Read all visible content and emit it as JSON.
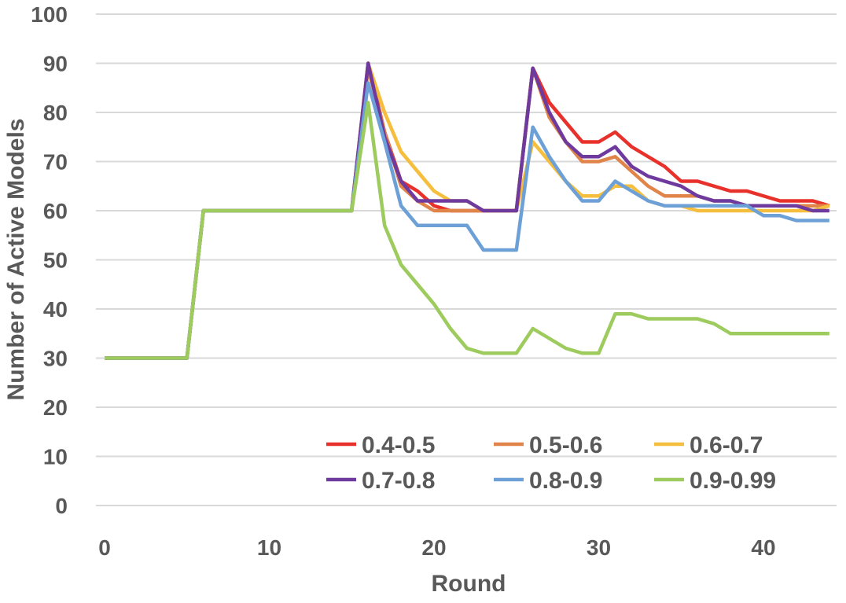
{
  "chart_data": {
    "type": "line",
    "title": "",
    "xlabel": "Round",
    "ylabel": "Number of Active Models",
    "xlim": [
      0,
      44
    ],
    "ylim": [
      0,
      100
    ],
    "xticks": [
      0,
      10,
      20,
      30,
      40
    ],
    "yticks": [
      0,
      10,
      20,
      30,
      40,
      50,
      60,
      70,
      80,
      90,
      100
    ],
    "grid": "horizontal",
    "legend_position": "bottom-right",
    "x": [
      0,
      1,
      2,
      3,
      4,
      5,
      6,
      7,
      8,
      9,
      10,
      11,
      12,
      13,
      14,
      15,
      16,
      17,
      18,
      19,
      20,
      21,
      22,
      23,
      24,
      25,
      26,
      27,
      28,
      29,
      30,
      31,
      32,
      33,
      34,
      35,
      36,
      37,
      38,
      39,
      40,
      41,
      42,
      43,
      44
    ],
    "series": [
      {
        "name": "0.4-0.5",
        "color": "#E8312A",
        "values": [
          30,
          30,
          30,
          30,
          30,
          30,
          60,
          60,
          60,
          60,
          60,
          60,
          60,
          60,
          60,
          60,
          90,
          76,
          66,
          64,
          61,
          60,
          60,
          60,
          60,
          60,
          89,
          82,
          78,
          74,
          74,
          76,
          73,
          71,
          69,
          66,
          66,
          65,
          64,
          64,
          63,
          62,
          62,
          62,
          61
        ]
      },
      {
        "name": "0.5-0.6",
        "color": "#E0844A",
        "values": [
          30,
          30,
          30,
          30,
          30,
          30,
          60,
          60,
          60,
          60,
          60,
          60,
          60,
          60,
          60,
          60,
          89,
          76,
          65,
          62,
          60,
          60,
          60,
          60,
          60,
          60,
          89,
          79,
          74,
          70,
          70,
          71,
          68,
          65,
          63,
          63,
          63,
          62,
          62,
          61,
          61,
          61,
          61,
          61,
          61
        ]
      },
      {
        "name": "0.6-0.7",
        "color": "#F6BE3D",
        "values": [
          30,
          30,
          30,
          30,
          30,
          30,
          60,
          60,
          60,
          60,
          60,
          60,
          60,
          60,
          60,
          60,
          90,
          80,
          72,
          68,
          64,
          62,
          62,
          60,
          60,
          60,
          74,
          70,
          66,
          63,
          63,
          65,
          65,
          62,
          61,
          61,
          60,
          60,
          60,
          60,
          60,
          60,
          60,
          60,
          61
        ]
      },
      {
        "name": "0.7-0.8",
        "color": "#6E3A9E",
        "values": [
          30,
          30,
          30,
          30,
          30,
          30,
          60,
          60,
          60,
          60,
          60,
          60,
          60,
          60,
          60,
          60,
          90,
          75,
          66,
          62,
          62,
          62,
          62,
          60,
          60,
          60,
          89,
          80,
          74,
          71,
          71,
          73,
          69,
          67,
          66,
          65,
          63,
          62,
          62,
          61,
          61,
          61,
          61,
          60,
          60
        ]
      },
      {
        "name": "0.8-0.9",
        "color": "#6CA0D6",
        "values": [
          30,
          30,
          30,
          30,
          30,
          30,
          60,
          60,
          60,
          60,
          60,
          60,
          60,
          60,
          60,
          60,
          86,
          74,
          61,
          57,
          57,
          57,
          57,
          52,
          52,
          52,
          77,
          71,
          66,
          62,
          62,
          66,
          64,
          62,
          61,
          61,
          61,
          61,
          61,
          61,
          59,
          59,
          58,
          58,
          58
        ]
      },
      {
        "name": "0.9-0.99",
        "color": "#9DCB5E",
        "values": [
          30,
          30,
          30,
          30,
          30,
          30,
          60,
          60,
          60,
          60,
          60,
          60,
          60,
          60,
          60,
          60,
          82,
          57,
          49,
          45,
          41,
          36,
          32,
          31,
          31,
          31,
          36,
          34,
          32,
          31,
          31,
          39,
          39,
          38,
          38,
          38,
          38,
          37,
          35,
          35,
          35,
          35,
          35,
          35,
          35
        ]
      }
    ]
  }
}
